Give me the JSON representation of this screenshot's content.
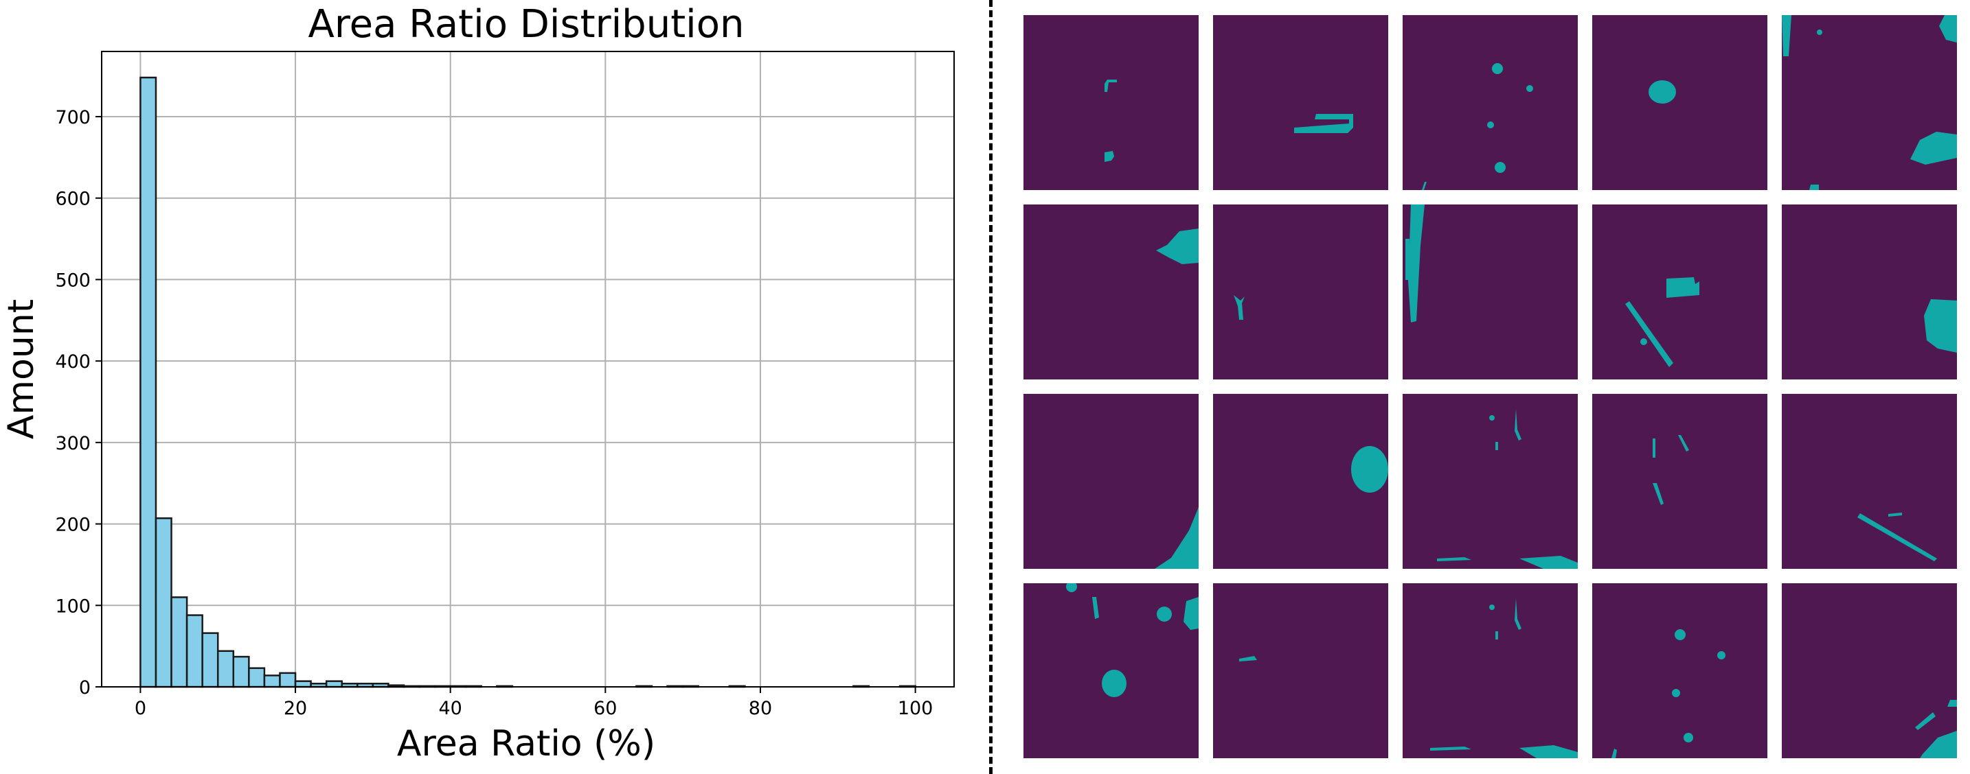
{
  "chart_data": {
    "type": "bar",
    "title": "Area Ratio Distribution",
    "xlabel": "Area Ratio (%)",
    "ylabel": "Amount",
    "xlim": [
      -5,
      105
    ],
    "ylim": [
      0,
      780
    ],
    "xticks": [
      0,
      20,
      40,
      60,
      80,
      100
    ],
    "yticks": [
      0,
      100,
      200,
      300,
      400,
      500,
      600,
      700
    ],
    "grid": true,
    "bin_width": 2,
    "bins": [
      0,
      2,
      4,
      6,
      8,
      10,
      12,
      14,
      16,
      18,
      20,
      22,
      24,
      26,
      28,
      30,
      32,
      34,
      36,
      38,
      40,
      42,
      44,
      46,
      48,
      50,
      52,
      54,
      56,
      58,
      60,
      62,
      64,
      66,
      68,
      70,
      72,
      74,
      76,
      78,
      80,
      82,
      84,
      86,
      88,
      90,
      92,
      94,
      96,
      98
    ],
    "values": [
      748,
      207,
      110,
      88,
      66,
      44,
      37,
      23,
      14,
      17,
      7,
      4,
      7,
      4,
      4,
      4,
      2,
      1,
      1,
      1,
      1,
      1,
      0,
      1,
      0,
      0,
      0,
      0,
      0,
      0,
      0,
      0,
      1,
      0,
      1,
      1,
      0,
      0,
      1,
      0,
      0,
      0,
      0,
      0,
      0,
      0,
      1,
      0,
      0,
      1
    ],
    "bar_color": "#87ceeb",
    "edge_color": "#1a1a1a"
  },
  "colors": {
    "mask_background": "#4f1850",
    "mask_foreground": "#12a8a8",
    "grid_line": "#b0b0b0",
    "divider": "#000000"
  },
  "mask_grid": {
    "rows": 4,
    "cols": 5,
    "content": "binary segmentation masks"
  }
}
